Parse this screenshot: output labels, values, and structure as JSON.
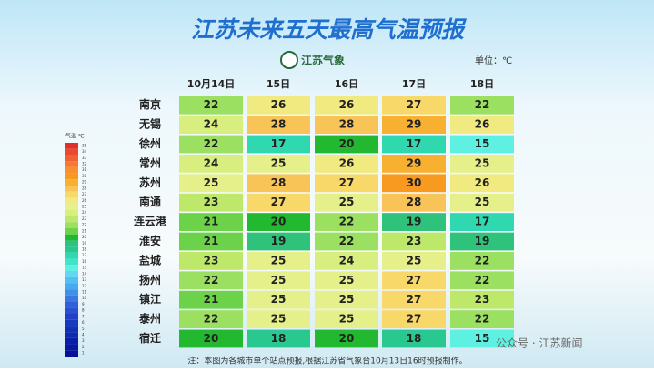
{
  "header": {
    "title": "江苏未来五天最高气温预报",
    "logo": "江苏气象",
    "unit": "单位：℃"
  },
  "table": {
    "columns": [
      "10月14日",
      "15日",
      "16日",
      "17日",
      "18日"
    ],
    "rows": [
      {
        "city": "南京",
        "values": [
          22,
          26,
          26,
          27,
          22
        ]
      },
      {
        "city": "无锡",
        "values": [
          24,
          28,
          28,
          29,
          26
        ]
      },
      {
        "city": "徐州",
        "values": [
          22,
          17,
          20,
          17,
          15
        ]
      },
      {
        "city": "常州",
        "values": [
          24,
          25,
          26,
          29,
          25
        ]
      },
      {
        "city": "苏州",
        "values": [
          25,
          28,
          27,
          30,
          26
        ]
      },
      {
        "city": "南通",
        "values": [
          23,
          27,
          25,
          28,
          25
        ]
      },
      {
        "city": "连云港",
        "values": [
          21,
          20,
          22,
          19,
          17
        ]
      },
      {
        "city": "淮安",
        "values": [
          21,
          19,
          22,
          23,
          19
        ]
      },
      {
        "city": "盐城",
        "values": [
          23,
          25,
          24,
          25,
          22
        ]
      },
      {
        "city": "扬州",
        "values": [
          22,
          25,
          25,
          27,
          22
        ]
      },
      {
        "city": "镇江",
        "values": [
          21,
          25,
          25,
          27,
          23
        ]
      },
      {
        "city": "泰州",
        "values": [
          22,
          25,
          25,
          27,
          22
        ]
      },
      {
        "city": "宿迁",
        "values": [
          20,
          18,
          20,
          18,
          15
        ]
      }
    ]
  },
  "legend": {
    "title": "气温 ℃",
    "ticks": [
      35,
      34,
      33,
      32,
      31,
      30,
      29,
      28,
      27,
      26,
      25,
      24,
      23,
      22,
      21,
      20,
      19,
      18,
      17,
      16,
      15,
      14,
      13,
      12,
      11,
      10,
      9,
      8,
      7,
      6,
      5,
      4,
      3,
      2,
      1
    ],
    "colors": [
      "#e0302a",
      "#e84a2a",
      "#f06030",
      "#f57a30",
      "#f89030",
      "#f89a20",
      "#f8b030",
      "#f8c458",
      "#f8d868",
      "#f0ea80",
      "#e6f08a",
      "#d8ef80",
      "#bde86a",
      "#9be060",
      "#6bd24a",
      "#22b830",
      "#2ec27a",
      "#28c890",
      "#30d8b0",
      "#40e4c8",
      "#5ef0e0",
      "#60d8f0",
      "#50c0f0",
      "#48a8f0",
      "#4090e8",
      "#3878e0",
      "#3060d8",
      "#2850d0",
      "#2040c8",
      "#1838c0",
      "#1030b8",
      "#1028b0",
      "#0820a8",
      "#0818a0",
      "#081098"
    ]
  },
  "footer": {
    "note": "注：本图为各城市单个站点预报,根据江苏省气象台10月13日16时预报制作。",
    "watermark": "公众号 · 江苏新闻"
  }
}
